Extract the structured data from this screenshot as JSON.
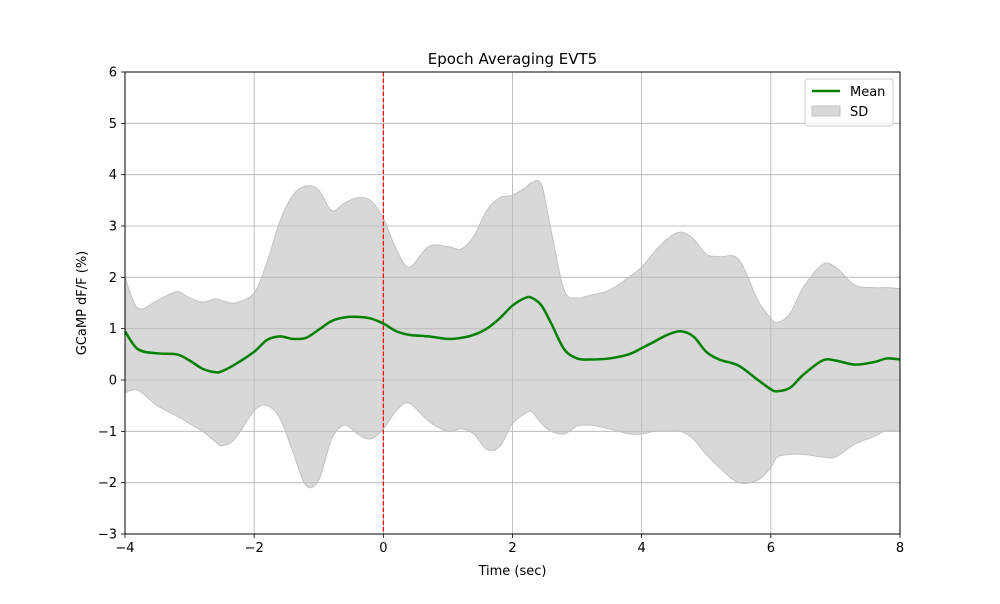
{
  "chart_data": {
    "type": "line",
    "title": "Epoch Averaging EVT5",
    "xlabel": "Time (sec)",
    "ylabel": "GCaMP dF/F (%)",
    "xlim": [
      -4,
      8
    ],
    "ylim": [
      -3,
      6
    ],
    "xticks": [
      -4,
      -2,
      0,
      2,
      4,
      6,
      8
    ],
    "xtick_labels": [
      "−4",
      "−2",
      "0",
      "2",
      "4",
      "6",
      "8"
    ],
    "yticks": [
      -3,
      -2,
      -1,
      0,
      1,
      2,
      3,
      4,
      5,
      6
    ],
    "ytick_labels": [
      "−3",
      "−2",
      "−1",
      "0",
      "1",
      "2",
      "3",
      "4",
      "5",
      "6"
    ],
    "grid": true,
    "legend": {
      "position": "top-right",
      "entries": [
        {
          "label": "Mean",
          "kind": "line",
          "color": "#008000"
        },
        {
          "label": "SD",
          "kind": "patch",
          "color": "#bebebe"
        }
      ]
    },
    "event_marker": {
      "x": 0,
      "color": "#ff0000",
      "style": "dashed"
    },
    "series": [
      {
        "name": "Mean",
        "color": "#008000",
        "x": [
          -4.0,
          -3.8,
          -3.5,
          -3.2,
          -3.0,
          -2.8,
          -2.6,
          -2.5,
          -2.3,
          -2.0,
          -1.8,
          -1.6,
          -1.4,
          -1.2,
          -1.0,
          -0.8,
          -0.6,
          -0.4,
          -0.2,
          0.0,
          0.2,
          0.4,
          0.7,
          1.0,
          1.2,
          1.4,
          1.6,
          1.8,
          2.0,
          2.2,
          2.3,
          2.45,
          2.6,
          2.8,
          3.0,
          3.2,
          3.5,
          3.8,
          4.0,
          4.2,
          4.4,
          4.6,
          4.8,
          5.0,
          5.2,
          5.5,
          5.8,
          6.0,
          6.1,
          6.3,
          6.5,
          6.8,
          7.0,
          7.3,
          7.6,
          7.8,
          8.0
        ],
        "y": [
          0.95,
          0.6,
          0.52,
          0.5,
          0.38,
          0.22,
          0.15,
          0.17,
          0.3,
          0.55,
          0.78,
          0.85,
          0.8,
          0.82,
          0.98,
          1.15,
          1.22,
          1.23,
          1.2,
          1.1,
          0.95,
          0.88,
          0.85,
          0.8,
          0.82,
          0.88,
          1.0,
          1.2,
          1.45,
          1.6,
          1.6,
          1.45,
          1.1,
          0.6,
          0.42,
          0.4,
          0.42,
          0.5,
          0.62,
          0.75,
          0.88,
          0.95,
          0.85,
          0.55,
          0.4,
          0.28,
          0.0,
          -0.18,
          -0.22,
          -0.15,
          0.1,
          0.38,
          0.38,
          0.3,
          0.35,
          0.42,
          0.4
        ]
      },
      {
        "name": "SD",
        "color": "#bebebe",
        "x": [
          -4.0,
          -3.8,
          -3.5,
          -3.2,
          -3.0,
          -2.8,
          -2.6,
          -2.5,
          -2.3,
          -2.0,
          -1.8,
          -1.6,
          -1.4,
          -1.2,
          -1.0,
          -0.8,
          -0.6,
          -0.4,
          -0.2,
          0.0,
          0.2,
          0.4,
          0.7,
          1.0,
          1.2,
          1.4,
          1.6,
          1.8,
          2.0,
          2.2,
          2.3,
          2.45,
          2.6,
          2.8,
          3.0,
          3.2,
          3.5,
          3.8,
          4.0,
          4.2,
          4.4,
          4.6,
          4.8,
          5.0,
          5.2,
          5.5,
          5.8,
          6.0,
          6.1,
          6.3,
          6.5,
          6.8,
          7.0,
          7.3,
          7.6,
          7.8,
          8.0
        ],
        "upper": [
          2.0,
          1.4,
          1.55,
          1.72,
          1.6,
          1.52,
          1.58,
          1.55,
          1.5,
          1.7,
          2.3,
          3.1,
          3.6,
          3.78,
          3.7,
          3.3,
          3.45,
          3.55,
          3.5,
          3.15,
          2.55,
          2.2,
          2.6,
          2.6,
          2.55,
          2.8,
          3.3,
          3.55,
          3.6,
          3.75,
          3.85,
          3.8,
          2.9,
          1.75,
          1.6,
          1.65,
          1.75,
          2.0,
          2.2,
          2.5,
          2.75,
          2.88,
          2.75,
          2.45,
          2.4,
          2.35,
          1.55,
          1.2,
          1.12,
          1.3,
          1.8,
          2.25,
          2.2,
          1.85,
          1.8,
          1.8,
          1.78
        ],
        "lower": [
          -0.25,
          -0.2,
          -0.5,
          -0.7,
          -0.85,
          -1.0,
          -1.2,
          -1.28,
          -1.15,
          -0.6,
          -0.5,
          -0.75,
          -1.4,
          -2.05,
          -1.95,
          -1.15,
          -0.88,
          -1.05,
          -1.15,
          -0.95,
          -0.6,
          -0.45,
          -0.8,
          -1.0,
          -0.95,
          -1.05,
          -1.35,
          -1.3,
          -0.85,
          -0.65,
          -0.62,
          -0.85,
          -1.0,
          -1.05,
          -0.9,
          -0.88,
          -0.95,
          -1.05,
          -1.05,
          -1.0,
          -1.0,
          -1.0,
          -1.15,
          -1.45,
          -1.7,
          -2.0,
          -1.95,
          -1.7,
          -1.5,
          -1.45,
          -1.45,
          -1.5,
          -1.5,
          -1.25,
          -1.1,
          -0.98,
          -1.0
        ]
      }
    ]
  }
}
